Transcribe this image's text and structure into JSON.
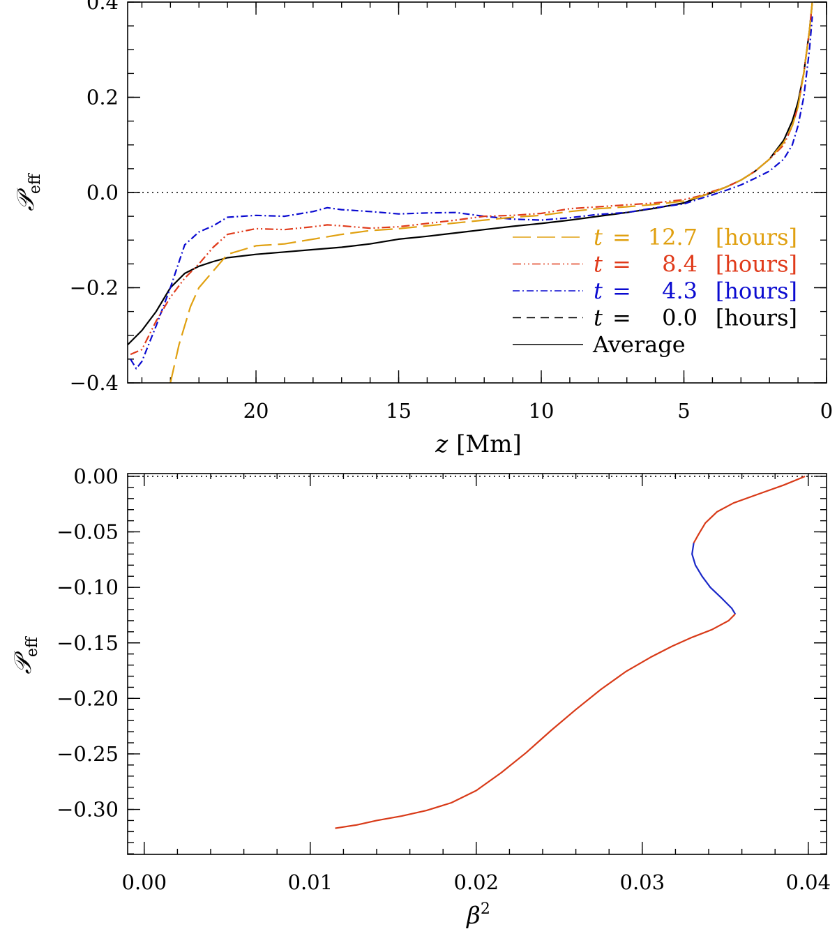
{
  "chart_data": [
    {
      "type": "line",
      "xlabel_var": "z",
      "xlabel_unit": "[Mm]",
      "ylabel_main": "𝒫",
      "ylabel_sub": "eff",
      "xlim": [
        24.5,
        0
      ],
      "ylim": [
        -0.4,
        0.4
      ],
      "x_ticks": [
        20,
        15,
        10,
        5,
        0
      ],
      "x_tick_labels": [
        "20",
        "15",
        "10",
        "5",
        "0"
      ],
      "y_ticks": [
        -0.4,
        -0.2,
        0.0,
        0.2,
        0.4
      ],
      "y_tick_labels": [
        "−0.4",
        "−0.2",
        "0.0",
        "0.2",
        "0.4"
      ],
      "reference_line": {
        "y": 0.0,
        "style": "dotted"
      },
      "series": [
        {
          "name": "Average",
          "legend": {
            "var": "",
            "eq": "",
            "value": "",
            "unit": "",
            "text": "Average"
          },
          "color": "#000000",
          "dash": "",
          "points": [
            [
              24.5,
              -0.32
            ],
            [
              24.0,
              -0.29
            ],
            [
              23.5,
              -0.25
            ],
            [
              23.0,
              -0.2
            ],
            [
              22.5,
              -0.17
            ],
            [
              22.0,
              -0.155
            ],
            [
              21.5,
              -0.145
            ],
            [
              21.0,
              -0.137
            ],
            [
              20.0,
              -0.13
            ],
            [
              19.0,
              -0.125
            ],
            [
              18.0,
              -0.12
            ],
            [
              17.0,
              -0.115
            ],
            [
              16.0,
              -0.108
            ],
            [
              15.0,
              -0.098
            ],
            [
              14.0,
              -0.092
            ],
            [
              13.0,
              -0.085
            ],
            [
              12.0,
              -0.078
            ],
            [
              11.0,
              -0.071
            ],
            [
              10.0,
              -0.065
            ],
            [
              9.0,
              -0.058
            ],
            [
              8.0,
              -0.05
            ],
            [
              7.0,
              -0.042
            ],
            [
              6.0,
              -0.033
            ],
            [
              5.0,
              -0.022
            ],
            [
              4.5,
              -0.01
            ],
            [
              4.0,
              0.0
            ],
            [
              3.5,
              0.012
            ],
            [
              3.0,
              0.026
            ],
            [
              2.5,
              0.045
            ],
            [
              2.0,
              0.07
            ],
            [
              1.5,
              0.11
            ],
            [
              1.2,
              0.15
            ],
            [
              1.0,
              0.19
            ],
            [
              0.8,
              0.25
            ],
            [
              0.6,
              0.34
            ],
            [
              0.5,
              0.4
            ]
          ]
        },
        {
          "name": "t = 0.0 [hours]",
          "legend": {
            "var": "t",
            "eq": "=",
            "value": "0.0",
            "unit": "[hours]",
            "text": ""
          },
          "color": "#000000",
          "dash": "12,8",
          "points": []
        },
        {
          "name": "t = 4.3 [hours]",
          "legend": {
            "var": "t",
            "eq": "=",
            "value": "4.3",
            "unit": "[hours]",
            "text": ""
          },
          "color": "#0a0ad0",
          "dash": "10,4,2,4",
          "points": [
            [
              24.4,
              -0.35
            ],
            [
              24.2,
              -0.37
            ],
            [
              24.0,
              -0.355
            ],
            [
              23.5,
              -0.28
            ],
            [
              23.0,
              -0.2
            ],
            [
              22.5,
              -0.11
            ],
            [
              22.0,
              -0.083
            ],
            [
              21.5,
              -0.07
            ],
            [
              21.0,
              -0.052
            ],
            [
              20.0,
              -0.048
            ],
            [
              19.0,
              -0.05
            ],
            [
              18.0,
              -0.04
            ],
            [
              17.5,
              -0.032
            ],
            [
              17.0,
              -0.036
            ],
            [
              16.0,
              -0.04
            ],
            [
              15.0,
              -0.045
            ],
            [
              14.0,
              -0.043
            ],
            [
              13.0,
              -0.042
            ],
            [
              12.0,
              -0.05
            ],
            [
              11.0,
              -0.056
            ],
            [
              10.0,
              -0.058
            ],
            [
              9.0,
              -0.053
            ],
            [
              8.0,
              -0.046
            ],
            [
              7.0,
              -0.042
            ],
            [
              6.0,
              -0.032
            ],
            [
              5.0,
              -0.024
            ],
            [
              4.5,
              -0.014
            ],
            [
              4.0,
              -0.005
            ],
            [
              3.5,
              0.005
            ],
            [
              3.0,
              0.016
            ],
            [
              2.5,
              0.03
            ],
            [
              2.0,
              0.045
            ],
            [
              1.5,
              0.07
            ],
            [
              1.2,
              0.1
            ],
            [
              1.0,
              0.14
            ],
            [
              0.8,
              0.2
            ],
            [
              0.6,
              0.3
            ],
            [
              0.5,
              0.37
            ]
          ]
        },
        {
          "name": "t = 8.4 [hours]",
          "legend": {
            "var": "t",
            "eq": "=",
            "value": "8.4",
            "unit": "[hours]",
            "text": ""
          },
          "color": "#e03a1a",
          "dash": "12,4,2,4,2,4",
          "points": [
            [
              24.4,
              -0.34
            ],
            [
              24.0,
              -0.33
            ],
            [
              23.5,
              -0.27
            ],
            [
              23.0,
              -0.22
            ],
            [
              22.5,
              -0.18
            ],
            [
              22.0,
              -0.15
            ],
            [
              21.5,
              -0.115
            ],
            [
              21.0,
              -0.088
            ],
            [
              20.0,
              -0.076
            ],
            [
              19.0,
              -0.078
            ],
            [
              18.0,
              -0.072
            ],
            [
              17.5,
              -0.068
            ],
            [
              17.0,
              -0.07
            ],
            [
              16.0,
              -0.075
            ],
            [
              15.0,
              -0.072
            ],
            [
              14.0,
              -0.065
            ],
            [
              13.0,
              -0.058
            ],
            [
              12.0,
              -0.05
            ],
            [
              11.0,
              -0.048
            ],
            [
              10.0,
              -0.044
            ],
            [
              9.0,
              -0.034
            ],
            [
              8.0,
              -0.03
            ],
            [
              7.0,
              -0.026
            ],
            [
              6.0,
              -0.022
            ],
            [
              5.0,
              -0.015
            ],
            [
              4.5,
              -0.008
            ],
            [
              4.0,
              0.002
            ],
            [
              3.5,
              0.012
            ],
            [
              3.0,
              0.026
            ],
            [
              2.5,
              0.045
            ],
            [
              2.0,
              0.07
            ],
            [
              1.5,
              0.1
            ],
            [
              1.2,
              0.14
            ],
            [
              1.0,
              0.18
            ],
            [
              0.8,
              0.25
            ],
            [
              0.6,
              0.34
            ],
            [
              0.5,
              0.4
            ]
          ]
        },
        {
          "name": "t = 12.7 [hours]",
          "legend": {
            "var": "t",
            "eq": "=",
            "value": "12.7",
            "unit": "[hours]",
            "text": ""
          },
          "color": "#e0a010",
          "dash": "26,9",
          "points": [
            [
              23.0,
              -0.4
            ],
            [
              22.7,
              -0.32
            ],
            [
              22.3,
              -0.24
            ],
            [
              22.0,
              -0.2
            ],
            [
              21.5,
              -0.165
            ],
            [
              21.0,
              -0.13
            ],
            [
              20.0,
              -0.112
            ],
            [
              19.0,
              -0.108
            ],
            [
              18.0,
              -0.098
            ],
            [
              17.0,
              -0.088
            ],
            [
              16.0,
              -0.08
            ],
            [
              15.0,
              -0.076
            ],
            [
              14.0,
              -0.07
            ],
            [
              13.0,
              -0.064
            ],
            [
              12.0,
              -0.058
            ],
            [
              11.0,
              -0.052
            ],
            [
              10.0,
              -0.048
            ],
            [
              9.0,
              -0.04
            ],
            [
              8.0,
              -0.034
            ],
            [
              7.0,
              -0.03
            ],
            [
              6.0,
              -0.025
            ],
            [
              5.0,
              -0.018
            ],
            [
              4.5,
              -0.01
            ],
            [
              4.0,
              0.0
            ],
            [
              3.5,
              0.012
            ],
            [
              3.0,
              0.026
            ],
            [
              2.5,
              0.045
            ],
            [
              2.0,
              0.07
            ],
            [
              1.5,
              0.105
            ],
            [
              1.2,
              0.14
            ],
            [
              1.0,
              0.18
            ],
            [
              0.8,
              0.25
            ],
            [
              0.6,
              0.34
            ],
            [
              0.5,
              0.4
            ]
          ]
        }
      ]
    },
    {
      "type": "line",
      "xlabel_var": "β",
      "xlabel_exp": "2",
      "ylabel_main": "𝒫",
      "ylabel_sub": "eff",
      "xlim": [
        -0.001,
        0.0411
      ],
      "ylim": [
        -0.3405,
        0.0025
      ],
      "x_ticks": [
        0.0,
        0.01,
        0.02,
        0.03,
        0.04
      ],
      "x_tick_labels": [
        "0.00",
        "0.01",
        "0.02",
        "0.03",
        "0.04"
      ],
      "y_ticks": [
        0.0,
        -0.05,
        -0.1,
        -0.15,
        -0.2,
        -0.25,
        -0.3
      ],
      "y_tick_labels": [
        "0.00",
        "−0.05",
        "−0.10",
        "−0.15",
        "−0.20",
        "−0.25",
        "−0.30"
      ],
      "reference_line": {
        "y": 0.0,
        "style": "dotted"
      },
      "series": [
        {
          "name": "curve",
          "color": "#d83a18",
          "points": [
            [
              0.0398,
              0.0
            ],
            [
              0.0385,
              -0.008
            ],
            [
              0.037,
              -0.016
            ],
            [
              0.0355,
              -0.024
            ],
            [
              0.0345,
              -0.032
            ],
            [
              0.0338,
              -0.042
            ],
            [
              0.0334,
              -0.052
            ],
            [
              0.0331,
              -0.06
            ]
          ]
        },
        {
          "name": "curve-highlight",
          "color": "#1a28c8",
          "points": [
            [
              0.0331,
              -0.06
            ],
            [
              0.033,
              -0.07
            ],
            [
              0.0332,
              -0.08
            ],
            [
              0.0336,
              -0.09
            ],
            [
              0.0341,
              -0.1
            ],
            [
              0.0348,
              -0.11
            ],
            [
              0.0354,
              -0.119
            ],
            [
              0.0356,
              -0.124
            ]
          ]
        },
        {
          "name": "curve-lower",
          "color": "#d83a18",
          "points": [
            [
              0.0356,
              -0.124
            ],
            [
              0.0352,
              -0.13
            ],
            [
              0.0342,
              -0.138
            ],
            [
              0.033,
              -0.145
            ],
            [
              0.0318,
              -0.153
            ],
            [
              0.0305,
              -0.163
            ],
            [
              0.029,
              -0.176
            ],
            [
              0.0275,
              -0.192
            ],
            [
              0.026,
              -0.21
            ],
            [
              0.0245,
              -0.229
            ],
            [
              0.023,
              -0.249
            ],
            [
              0.0215,
              -0.267
            ],
            [
              0.02,
              -0.283
            ],
            [
              0.0185,
              -0.294
            ],
            [
              0.017,
              -0.301
            ],
            [
              0.0155,
              -0.306
            ],
            [
              0.014,
              -0.31
            ],
            [
              0.0128,
              -0.314
            ],
            [
              0.0115,
              -0.317
            ]
          ]
        }
      ]
    }
  ]
}
